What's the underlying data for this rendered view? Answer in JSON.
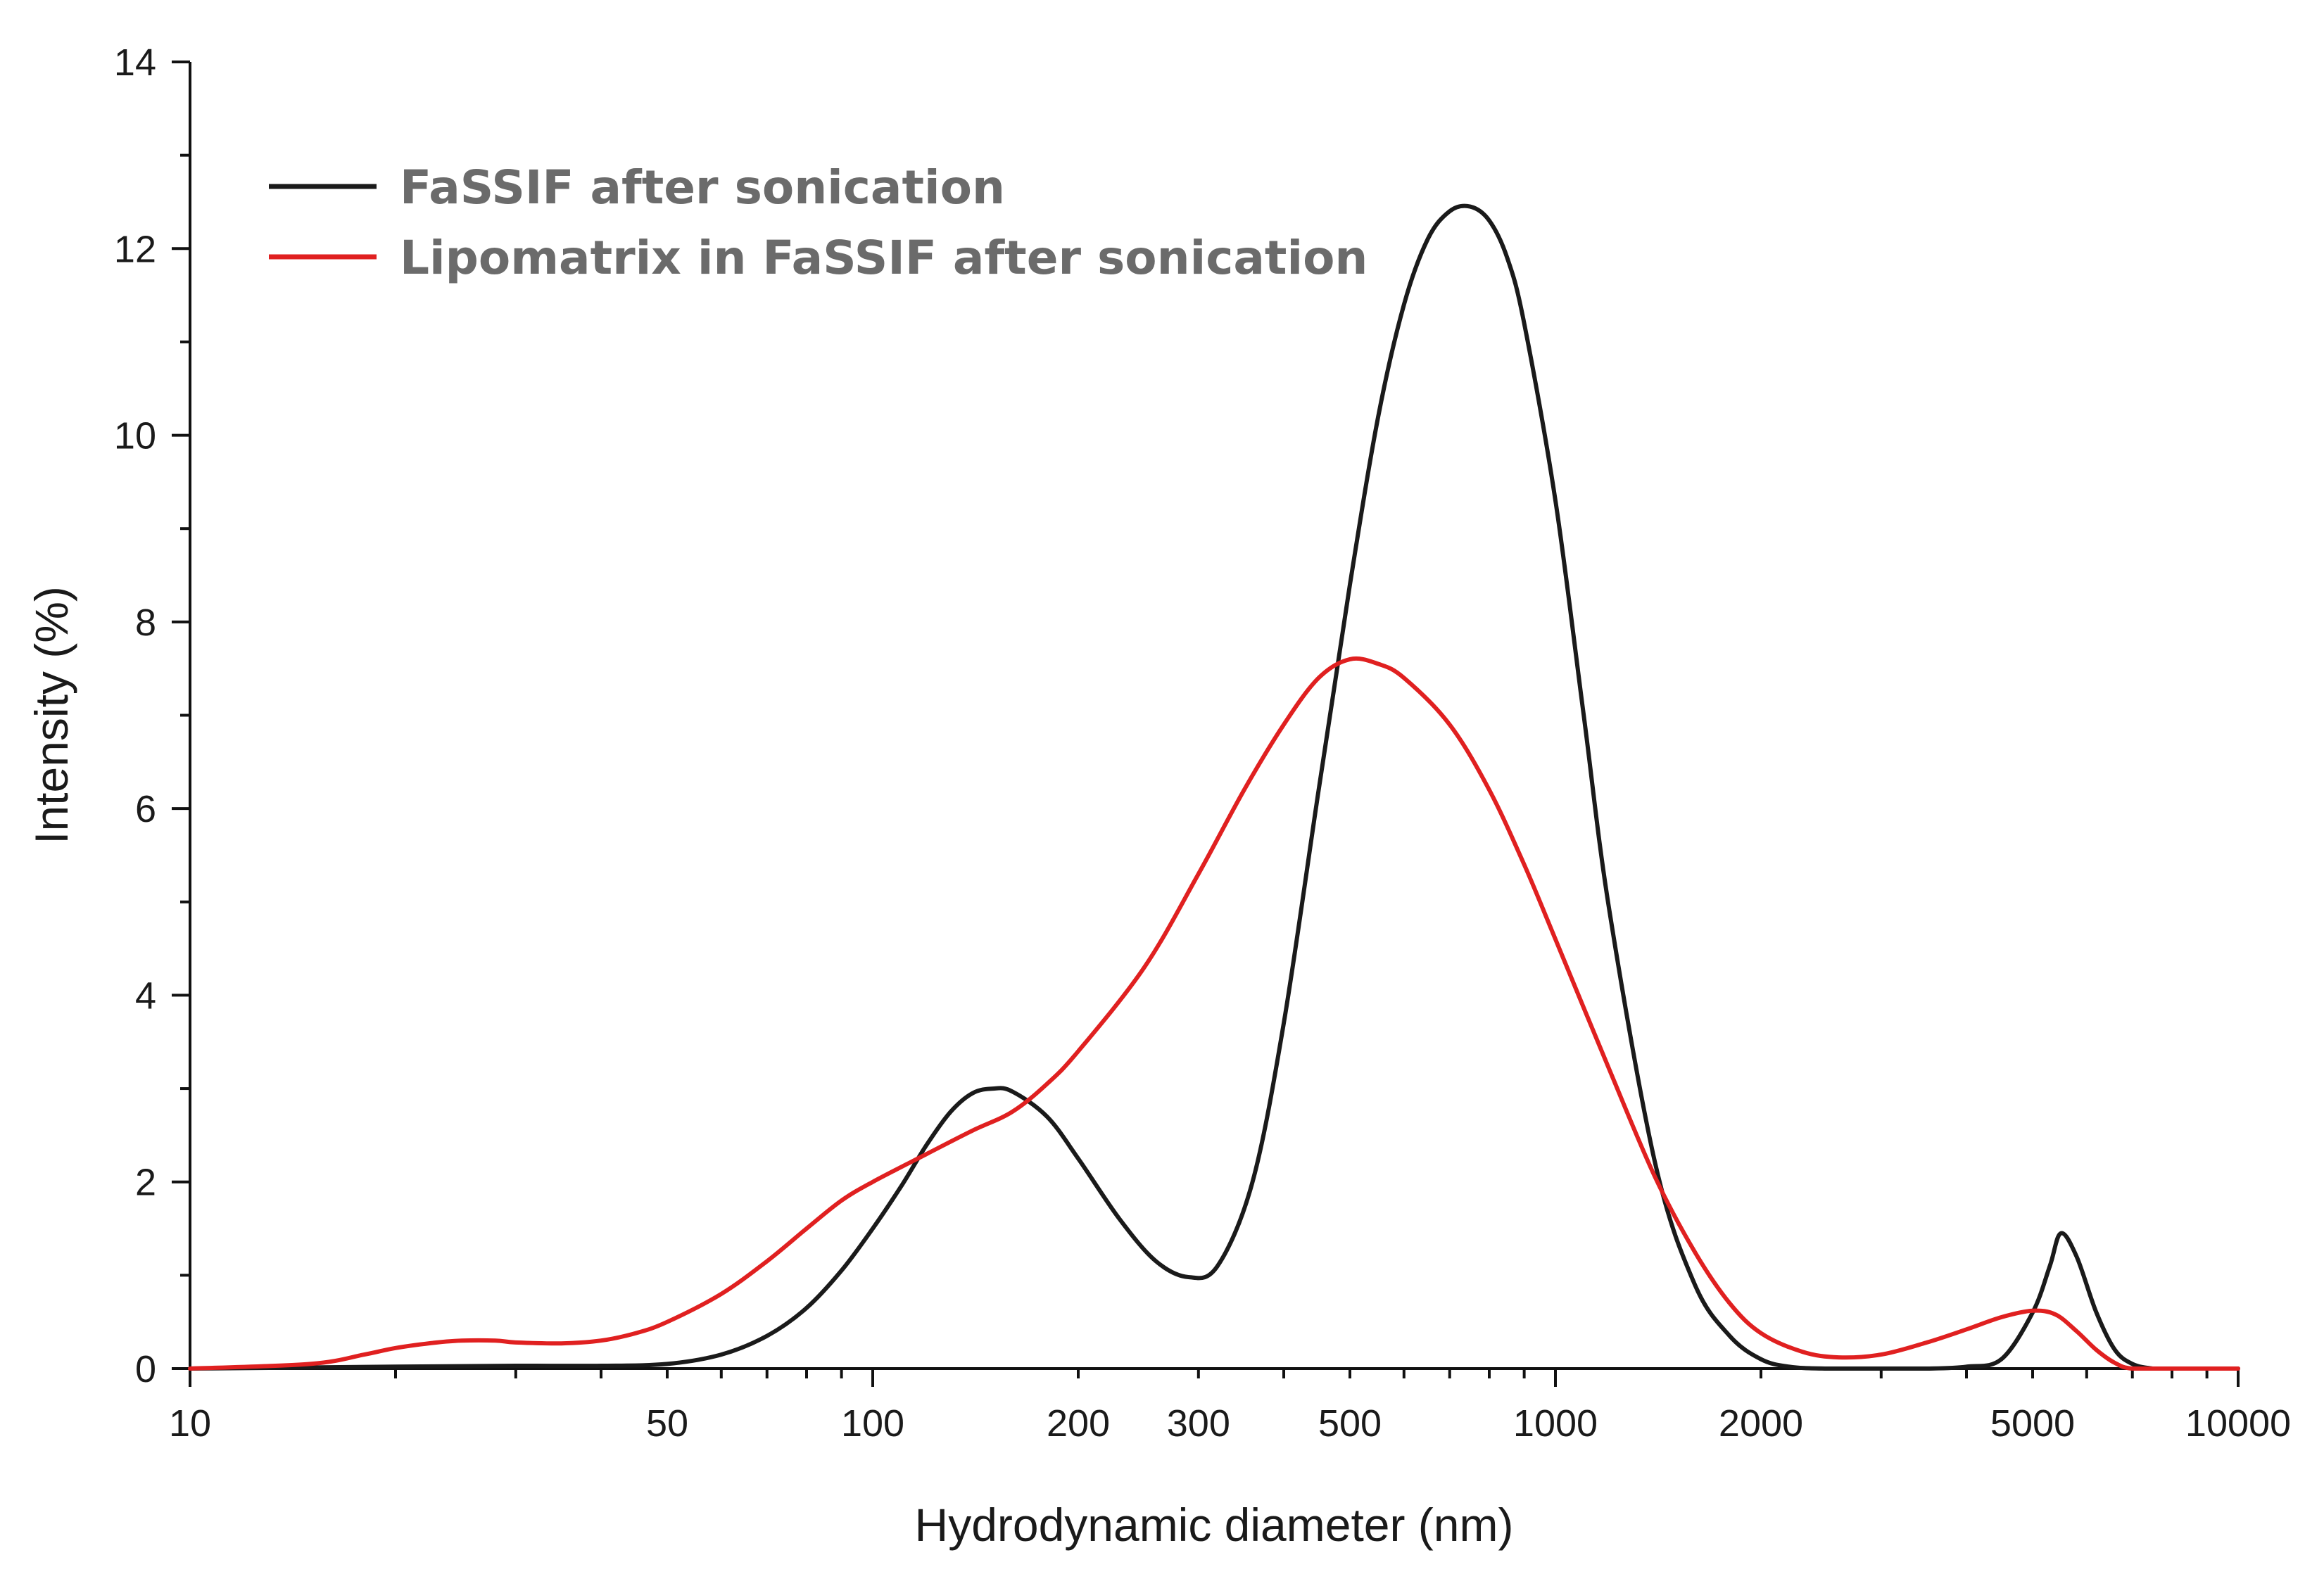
{
  "chart_data": {
    "type": "line",
    "title": "",
    "xlabel": "Hydrodynamic diameter (nm)",
    "ylabel": "Intensity (%)",
    "xscale": "log",
    "xlim": [
      10,
      10000
    ],
    "ylim": [
      0,
      14
    ],
    "x_ticks": [
      10,
      50,
      100,
      200,
      300,
      500,
      1000,
      2000,
      5000,
      10000
    ],
    "x_tick_labels": [
      "10",
      "50",
      "100",
      "200",
      "300",
      "500",
      "1000",
      "2000",
      "5000",
      "10000"
    ],
    "y_ticks": [
      0,
      2,
      4,
      6,
      8,
      10,
      12,
      14
    ],
    "y_tick_labels": [
      "0",
      "2",
      "4",
      "6",
      "8",
      "10",
      "12",
      "14"
    ],
    "grid": false,
    "legend_position": "top-left",
    "series": [
      {
        "name": "FaSSIF after sonication",
        "color": "#1a1a1a",
        "x": [
          10,
          20,
          30,
          40,
          50,
          60,
          70,
          80,
          90,
          100,
          110,
          120,
          130,
          140,
          150,
          160,
          180,
          200,
          230,
          260,
          290,
          320,
          360,
          400,
          450,
          500,
          550,
          600,
          650,
          700,
          750,
          800,
          850,
          900,
          1000,
          1100,
          1200,
          1400,
          1600,
          1800,
          2000,
          2200,
          2500,
          3000,
          3500,
          4000,
          4500,
          5000,
          5300,
          5500,
          5800,
          6200,
          6600,
          7000,
          7500,
          8000,
          9000,
          10000
        ],
        "y": [
          0,
          0.02,
          0.03,
          0.03,
          0.05,
          0.15,
          0.35,
          0.65,
          1.05,
          1.5,
          1.95,
          2.4,
          2.75,
          2.95,
          3.0,
          2.97,
          2.7,
          2.25,
          1.6,
          1.15,
          0.98,
          1.1,
          2.0,
          3.7,
          6.2,
          8.4,
          10.2,
          11.4,
          12.1,
          12.4,
          12.45,
          12.3,
          11.9,
          11.2,
          9.3,
          7.0,
          4.9,
          2.2,
          0.9,
          0.35,
          0.1,
          0.02,
          0,
          0,
          0,
          0.02,
          0.1,
          0.6,
          1.1,
          1.45,
          1.2,
          0.6,
          0.2,
          0.05,
          0,
          0,
          0,
          0
        ]
      },
      {
        "name": "Lipomatrix in FaSSIF after sonication",
        "color": "#e02020",
        "x": [
          10,
          15,
          18,
          20,
          23,
          25,
          28,
          30,
          35,
          40,
          45,
          50,
          60,
          70,
          80,
          90,
          100,
          120,
          140,
          160,
          180,
          200,
          250,
          300,
          350,
          400,
          450,
          500,
          550,
          600,
          700,
          800,
          900,
          1000,
          1200,
          1400,
          1600,
          1800,
          2000,
          2300,
          2600,
          3000,
          3500,
          4000,
          4500,
          5000,
          5400,
          5800,
          6200,
          6600,
          7000,
          8000,
          10000
        ],
        "y": [
          0,
          0.05,
          0.15,
          0.22,
          0.28,
          0.3,
          0.3,
          0.28,
          0.27,
          0.3,
          0.38,
          0.5,
          0.8,
          1.15,
          1.5,
          1.8,
          2.0,
          2.3,
          2.55,
          2.75,
          3.05,
          3.4,
          4.3,
          5.3,
          6.2,
          6.9,
          7.4,
          7.6,
          7.55,
          7.4,
          6.9,
          6.2,
          5.4,
          4.6,
          3.2,
          2.05,
          1.25,
          0.7,
          0.38,
          0.18,
          0.12,
          0.15,
          0.28,
          0.42,
          0.55,
          0.62,
          0.58,
          0.4,
          0.2,
          0.06,
          0,
          0,
          0
        ]
      }
    ]
  }
}
